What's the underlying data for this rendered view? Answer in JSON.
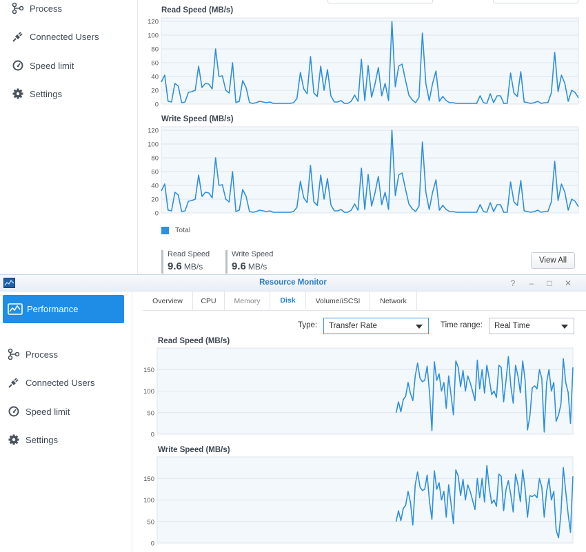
{
  "sidebar": {
    "items": [
      {
        "label": "Performance",
        "icon": "performance-icon"
      },
      {
        "label": "Process",
        "icon": "process-icon"
      },
      {
        "label": "Connected Users",
        "icon": "connected-users-icon"
      },
      {
        "label": "Speed limit",
        "icon": "speed-limit-icon"
      },
      {
        "label": "Settings",
        "icon": "gear-icon"
      }
    ]
  },
  "bg_window": {
    "legend_label": "Total",
    "stats": {
      "read_label": "Read Speed",
      "read_value": "9.6",
      "read_unit": "MB/s",
      "write_label": "Write Speed",
      "write_value": "9.6",
      "write_unit": "MB/s"
    },
    "view_all_label": "View All"
  },
  "window": {
    "title": "Resource Monitor",
    "controls": [
      "?",
      "–",
      "□",
      "✕"
    ],
    "tabs": [
      "Overview",
      "CPU",
      "Memory",
      "Disk",
      "Volume/iSCSI",
      "Network"
    ],
    "active_tab": "Disk",
    "type_label": "Type:",
    "type_value": "Transfer Rate",
    "time_range_label": "Time range:",
    "time_range_value": "Real Time"
  },
  "colors": {
    "accent": "#1f8de6",
    "line": "#2d8fe0",
    "plot_bg": "#f3f8fc"
  },
  "chart_data": [
    {
      "id": "bg-read",
      "type": "line",
      "title": "Read Speed (MB/s)",
      "yticks": [
        0,
        20,
        40,
        60,
        80,
        100,
        120
      ],
      "ylim": [
        0,
        125
      ],
      "series": [
        {
          "name": "Total",
          "values": [
            32,
            42,
            4,
            3,
            30,
            26,
            2,
            3,
            17,
            18,
            20,
            55,
            24,
            30,
            29,
            22,
            80,
            40,
            41,
            20,
            16,
            60,
            2,
            4,
            34,
            24,
            2,
            1,
            2,
            4,
            3,
            2,
            3,
            1,
            1,
            1,
            1,
            1,
            1,
            2,
            8,
            46,
            22,
            15,
            69,
            16,
            11,
            55,
            20,
            50,
            12,
            3,
            3,
            5,
            1,
            1,
            4,
            13,
            4,
            65,
            5,
            56,
            10,
            29,
            53,
            12,
            30,
            5,
            120,
            25,
            55,
            58,
            35,
            13,
            6,
            2,
            10,
            103,
            30,
            5,
            30,
            48,
            4,
            11,
            5,
            2,
            2,
            1,
            1,
            1,
            1,
            1,
            1,
            1,
            12,
            2,
            1,
            15,
            2,
            12,
            12,
            1,
            1,
            45,
            16,
            11,
            47,
            3,
            2,
            1,
            2,
            4,
            1,
            2,
            2,
            16,
            75,
            18,
            42,
            30,
            4,
            20,
            17,
            9
          ]
        }
      ]
    },
    {
      "id": "bg-write",
      "type": "line",
      "title": "Write Speed (MB/s)",
      "yticks": [
        0,
        20,
        40,
        60,
        80,
        100,
        120
      ],
      "ylim": [
        0,
        125
      ],
      "series": [
        {
          "name": "Total",
          "values": [
            32,
            42,
            4,
            3,
            30,
            26,
            2,
            3,
            17,
            18,
            20,
            55,
            24,
            30,
            29,
            22,
            80,
            40,
            41,
            20,
            16,
            60,
            2,
            4,
            34,
            24,
            2,
            1,
            2,
            4,
            3,
            2,
            3,
            1,
            1,
            1,
            1,
            1,
            1,
            2,
            8,
            46,
            22,
            15,
            69,
            16,
            11,
            55,
            20,
            50,
            12,
            3,
            3,
            5,
            1,
            1,
            4,
            13,
            4,
            65,
            5,
            56,
            10,
            29,
            53,
            12,
            30,
            5,
            120,
            25,
            55,
            58,
            35,
            13,
            6,
            2,
            10,
            103,
            30,
            5,
            30,
            48,
            4,
            11,
            5,
            2,
            2,
            1,
            1,
            1,
            1,
            1,
            1,
            1,
            12,
            2,
            1,
            15,
            2,
            12,
            12,
            1,
            1,
            45,
            16,
            11,
            47,
            3,
            2,
            1,
            2,
            4,
            1,
            2,
            2,
            16,
            75,
            18,
            42,
            30,
            4,
            20,
            17,
            9
          ]
        }
      ]
    },
    {
      "id": "fg-read",
      "type": "line",
      "title": "Read Speed (MB/s)",
      "yticks": [
        0,
        50,
        100,
        150
      ],
      "ylim": [
        0,
        200
      ],
      "series": [
        {
          "name": "",
          "values": [
            null,
            null,
            null,
            null,
            null,
            null,
            null,
            null,
            null,
            null,
            null,
            null,
            null,
            null,
            null,
            null,
            null,
            null,
            null,
            null,
            null,
            null,
            null,
            null,
            null,
            null,
            null,
            null,
            null,
            null,
            null,
            null,
            null,
            null,
            null,
            null,
            null,
            null,
            null,
            null,
            null,
            null,
            null,
            null,
            null,
            null,
            null,
            null,
            null,
            null,
            null,
            null,
            null,
            null,
            null,
            null,
            null,
            null,
            null,
            null,
            null,
            null,
            null,
            null,
            null,
            null,
            null,
            null,
            null,
            null,
            null,
            null,
            null,
            null,
            null,
            null,
            null,
            null,
            null,
            null,
            null,
            null,
            null,
            null,
            null,
            null,
            null,
            null,
            null,
            null,
            null,
            null,
            null,
            null,
            null,
            null,
            null,
            null,
            null,
            null,
            50,
            75,
            52,
            80,
            88,
            120,
            95,
            78,
            135,
            165,
            130,
            122,
            125,
            158,
            95,
            8,
            168,
            125,
            140,
            100,
            120,
            60,
            135,
            90,
            45,
            170,
            155,
            110,
            148,
            100,
            135,
            120,
            100,
            78,
            172,
            105,
            150,
            95,
            160,
            128,
            92,
            100,
            85,
            160,
            155,
            75,
            125,
            180,
            112,
            72,
            160,
            135,
            96,
            170,
            125,
            10,
            42,
            108,
            112,
            105,
            150,
            130,
            5,
            120,
            150,
            100,
            120,
            30,
            45,
            70,
            175,
            120,
            97,
            25,
            155
          ]
        }
      ]
    },
    {
      "id": "fg-write",
      "type": "line",
      "title": "Write Speed (MB/s)",
      "yticks": [
        0,
        50,
        100,
        150
      ],
      "ylim": [
        0,
        200
      ],
      "series": [
        {
          "name": "",
          "values": [
            null,
            null,
            null,
            null,
            null,
            null,
            null,
            null,
            null,
            null,
            null,
            null,
            null,
            null,
            null,
            null,
            null,
            null,
            null,
            null,
            null,
            null,
            null,
            null,
            null,
            null,
            null,
            null,
            null,
            null,
            null,
            null,
            null,
            null,
            null,
            null,
            null,
            null,
            null,
            null,
            null,
            null,
            null,
            null,
            null,
            null,
            null,
            null,
            null,
            null,
            null,
            null,
            null,
            null,
            null,
            null,
            null,
            null,
            null,
            null,
            null,
            null,
            null,
            null,
            null,
            null,
            null,
            null,
            null,
            null,
            null,
            null,
            null,
            null,
            null,
            null,
            null,
            null,
            null,
            null,
            null,
            null,
            null,
            null,
            null,
            null,
            null,
            null,
            null,
            null,
            null,
            null,
            null,
            null,
            null,
            null,
            null,
            null,
            null,
            null,
            50,
            75,
            52,
            80,
            88,
            120,
            95,
            42,
            135,
            165,
            130,
            122,
            125,
            158,
            95,
            55,
            168,
            125,
            140,
            100,
            120,
            60,
            135,
            90,
            45,
            170,
            155,
            110,
            148,
            100,
            135,
            120,
            100,
            78,
            150,
            105,
            150,
            95,
            180,
            128,
            92,
            100,
            85,
            160,
            155,
            75,
            125,
            145,
            112,
            72,
            160,
            135,
            96,
            170,
            125,
            60,
            110,
            108,
            112,
            105,
            150,
            130,
            60,
            120,
            150,
            100,
            120,
            30,
            12,
            70,
            175,
            120,
            67,
            25,
            155
          ]
        }
      ]
    }
  ]
}
